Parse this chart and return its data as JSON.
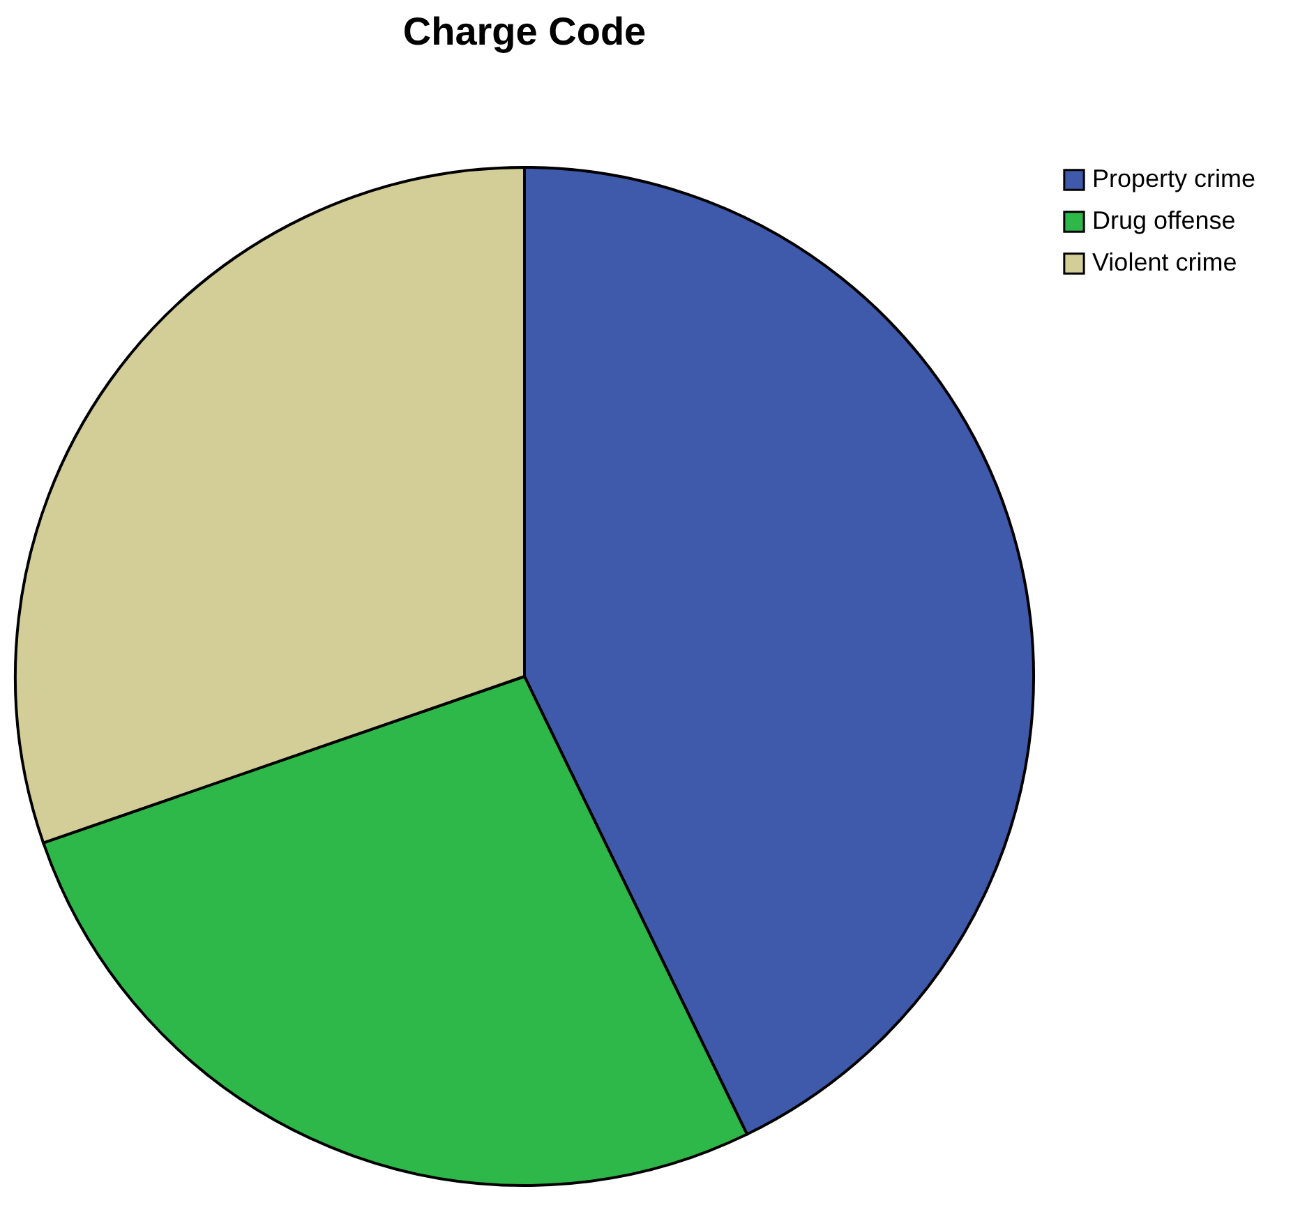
{
  "chart_data": {
    "type": "pie",
    "title": "Charge Code",
    "categories": [
      "Property crime",
      "Drug offense",
      "Violent crime"
    ],
    "values": [
      42.8,
      26.9,
      30.3
    ],
    "colors": [
      "#3f5aab",
      "#2fb84a",
      "#d3ce98"
    ],
    "legend": "top right"
  }
}
